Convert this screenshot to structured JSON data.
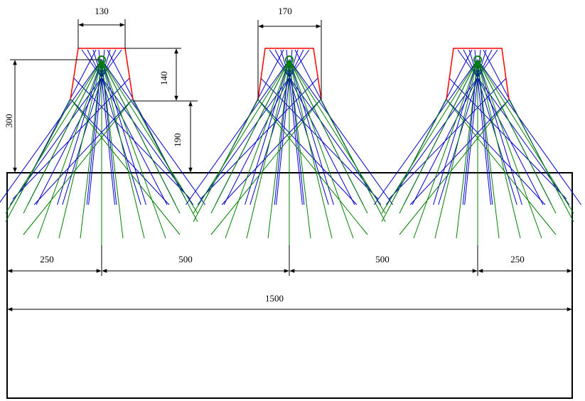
{
  "diagram": {
    "colors": {
      "outline": "#000000",
      "reflector": "#ff0000",
      "rays_primary": "#0000cc",
      "rays_secondary": "#008000",
      "dimension": "#000000"
    },
    "labels": {
      "width_small": "130",
      "width_large": "170",
      "height_reflector": "140",
      "height_gap": "190",
      "height_total": "300",
      "spacing_left": "250",
      "spacing_mid1": "500",
      "spacing_mid2": "500",
      "spacing_right": "250",
      "total_width": "1500"
    }
  }
}
